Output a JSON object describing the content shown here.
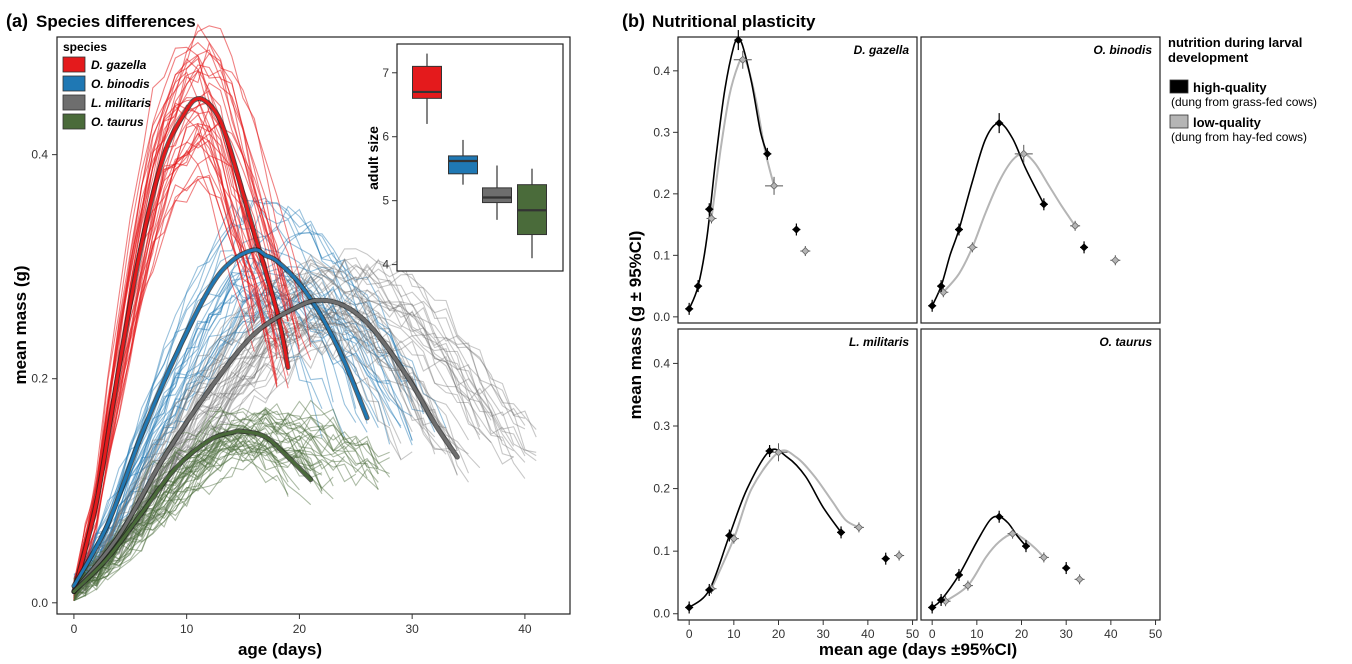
{
  "colors": {
    "dgazella": "#e41a1c",
    "obinodis": "#1f78b4",
    "lmilitaris": "#6e6e6e",
    "otaurus": "#4a6b3a",
    "high": "#000000",
    "low": "#b5b5b5"
  },
  "chart_data": [
    {
      "panel_label": "(a)",
      "title": "Species differences",
      "type": "line",
      "xlabel": "age (days)",
      "ylabel": "mean mass (g)",
      "xlim": [
        -1.5,
        44
      ],
      "ylim": [
        -0.01,
        0.505
      ],
      "xticks": [
        "0",
        "10",
        "20",
        "30",
        "40"
      ],
      "yticks": [
        "0.0",
        "0.2",
        "0.4"
      ],
      "legend": {
        "title": "species",
        "position": "top-left",
        "items": [
          "D. gazella",
          "O. binodis",
          "L. militaris",
          "O. taurus"
        ]
      },
      "series": [
        {
          "name": "D. gazella",
          "color": "#e41a1c",
          "mean_x": [
            0,
            2,
            4,
            6,
            8,
            10,
            11,
            12,
            13,
            14,
            16,
            18,
            19
          ],
          "mean_y": [
            0.01,
            0.09,
            0.21,
            0.32,
            0.4,
            0.44,
            0.45,
            0.445,
            0.43,
            0.4,
            0.33,
            0.26,
            0.21
          ]
        },
        {
          "name": "O. binodis",
          "color": "#1f78b4",
          "mean_x": [
            0,
            3,
            6,
            9,
            12,
            14,
            16,
            17,
            18,
            20,
            22,
            24,
            26
          ],
          "mean_y": [
            0.015,
            0.07,
            0.15,
            0.22,
            0.28,
            0.305,
            0.315,
            0.31,
            0.305,
            0.285,
            0.255,
            0.215,
            0.165
          ]
        },
        {
          "name": "L. militaris",
          "color": "#6e6e6e",
          "mean_x": [
            0,
            4,
            8,
            12,
            16,
            20,
            22,
            24,
            26,
            28,
            30,
            32,
            34
          ],
          "mean_y": [
            0.01,
            0.06,
            0.13,
            0.19,
            0.24,
            0.265,
            0.27,
            0.265,
            0.25,
            0.225,
            0.195,
            0.16,
            0.13
          ]
        },
        {
          "name": "O. taurus",
          "color": "#4a6b3a",
          "mean_x": [
            0,
            3,
            6,
            9,
            12,
            14,
            15,
            17,
            19,
            21
          ],
          "mean_y": [
            0.01,
            0.04,
            0.08,
            0.12,
            0.145,
            0.152,
            0.153,
            0.148,
            0.13,
            0.11
          ]
        }
      ],
      "inset": {
        "type": "box",
        "ylabel": "adult size",
        "ylim": [
          3.9,
          7.45
        ],
        "yticks": [
          "4",
          "5",
          "6",
          "7"
        ],
        "boxes": [
          {
            "name": "D. gazella",
            "color": "#e41a1c",
            "min": 6.2,
            "q1": 6.6,
            "median": 6.7,
            "q3": 7.1,
            "max": 7.3
          },
          {
            "name": "O. binodis",
            "color": "#1f78b4",
            "min": 5.25,
            "q1": 5.42,
            "median": 5.62,
            "q3": 5.7,
            "max": 5.95
          },
          {
            "name": "L. militaris",
            "color": "#6e6e6e",
            "min": 4.7,
            "q1": 4.97,
            "median": 5.05,
            "q3": 5.2,
            "max": 5.55
          },
          {
            "name": "O. taurus",
            "color": "#4a6b3a",
            "min": 4.1,
            "q1": 4.47,
            "median": 4.85,
            "q3": 5.25,
            "max": 5.5
          }
        ]
      }
    },
    {
      "panel_label": "(b)",
      "title": "Nutritional plasticity",
      "type": "scatter",
      "xlabel": "mean age (days ±95%CI)",
      "ylabel": "mean mass (g ± 95%CI)",
      "xlim": [
        -2.5,
        51
      ],
      "ylim": [
        -0.01,
        0.455
      ],
      "xticks": [
        "0",
        "10",
        "20",
        "30",
        "40",
        "50"
      ],
      "yticks": [
        "0.0",
        "0.1",
        "0.2",
        "0.3",
        "0.4"
      ],
      "legend": {
        "title": "nutrition during larval development",
        "position": "right",
        "items": [
          {
            "label": "high-quality",
            "note": "(dung from grass-fed cows)"
          },
          {
            "label": "low-quality",
            "note": "(dung from hay-fed cows)"
          }
        ]
      },
      "facets": [
        {
          "name": "D. gazella",
          "high": [
            [
              0,
              0.013
            ],
            [
              2,
              0.05
            ],
            [
              4.5,
              0.175
            ],
            [
              11,
              0.45
            ],
            [
              17.5,
              0.265
            ],
            [
              24,
              0.142
            ]
          ],
          "low": [
            [
              5,
              0.16
            ],
            [
              12,
              0.418
            ],
            [
              19,
              0.213
            ],
            [
              26,
              0.107
            ]
          ],
          "high_curve": [
            [
              0,
              0.013
            ],
            [
              2,
              0.05
            ],
            [
              4,
              0.13
            ],
            [
              6,
              0.26
            ],
            [
              8,
              0.37
            ],
            [
              10,
              0.44
            ],
            [
              11,
              0.45
            ],
            [
              12,
              0.44
            ],
            [
              14,
              0.38
            ],
            [
              16,
              0.3
            ],
            [
              17.5,
              0.265
            ]
          ],
          "low_curve": [
            [
              5,
              0.16
            ],
            [
              7,
              0.27
            ],
            [
              9,
              0.36
            ],
            [
              11,
              0.41
            ],
            [
              12,
              0.418
            ],
            [
              13,
              0.41
            ],
            [
              15,
              0.35
            ],
            [
              17,
              0.27
            ],
            [
              19,
              0.213
            ]
          ]
        },
        {
          "name": "O. binodis",
          "high": [
            [
              0,
              0.018
            ],
            [
              2,
              0.05
            ],
            [
              6,
              0.142
            ],
            [
              15,
              0.315
            ],
            [
              25,
              0.183
            ],
            [
              34,
              0.113
            ]
          ],
          "low": [
            [
              2.5,
              0.04
            ],
            [
              9,
              0.113
            ],
            [
              20.5,
              0.265
            ],
            [
              32,
              0.148
            ],
            [
              41,
              0.092
            ]
          ],
          "high_curve": [
            [
              0,
              0.018
            ],
            [
              2,
              0.05
            ],
            [
              4,
              0.1
            ],
            [
              6,
              0.142
            ],
            [
              9,
              0.22
            ],
            [
              12,
              0.29
            ],
            [
              15,
              0.315
            ],
            [
              18,
              0.29
            ],
            [
              21,
              0.24
            ],
            [
              25,
              0.183
            ]
          ],
          "low_curve": [
            [
              2.5,
              0.04
            ],
            [
              6,
              0.07
            ],
            [
              9,
              0.113
            ],
            [
              12,
              0.17
            ],
            [
              15,
              0.22
            ],
            [
              18,
              0.255
            ],
            [
              20.5,
              0.265
            ],
            [
              23,
              0.25
            ],
            [
              26,
              0.215
            ],
            [
              29,
              0.18
            ],
            [
              32,
              0.148
            ]
          ]
        },
        {
          "name": "L. militaris",
          "high": [
            [
              0,
              0.01
            ],
            [
              4.5,
              0.038
            ],
            [
              9,
              0.125
            ],
            [
              18,
              0.26
            ],
            [
              34,
              0.13
            ],
            [
              44,
              0.088
            ]
          ],
          "low": [
            [
              5,
              0.04
            ],
            [
              10,
              0.12
            ],
            [
              20,
              0.258
            ],
            [
              38,
              0.138
            ],
            [
              47,
              0.093
            ]
          ],
          "high_curve": [
            [
              0,
              0.01
            ],
            [
              4.5,
              0.038
            ],
            [
              9,
              0.125
            ],
            [
              13,
              0.2
            ],
            [
              18,
              0.26
            ],
            [
              22,
              0.25
            ],
            [
              26,
              0.22
            ],
            [
              30,
              0.17
            ],
            [
              34,
              0.13
            ]
          ],
          "low_curve": [
            [
              5,
              0.04
            ],
            [
              10,
              0.12
            ],
            [
              14,
              0.2
            ],
            [
              20,
              0.258
            ],
            [
              24,
              0.25
            ],
            [
              28,
              0.22
            ],
            [
              32,
              0.18
            ],
            [
              35,
              0.15
            ],
            [
              38,
              0.138
            ]
          ]
        },
        {
          "name": "O. taurus",
          "high": [
            [
              0,
              0.01
            ],
            [
              2,
              0.022
            ],
            [
              6,
              0.062
            ],
            [
              15,
              0.155
            ],
            [
              21,
              0.108
            ],
            [
              30,
              0.073
            ]
          ],
          "low": [
            [
              3,
              0.02
            ],
            [
              8,
              0.045
            ],
            [
              18,
              0.128
            ],
            [
              25,
              0.09
            ],
            [
              33,
              0.055
            ]
          ],
          "high_curve": [
            [
              0,
              0.01
            ],
            [
              2,
              0.022
            ],
            [
              6,
              0.062
            ],
            [
              10,
              0.115
            ],
            [
              13,
              0.15
            ],
            [
              15,
              0.155
            ],
            [
              17,
              0.145
            ],
            [
              19,
              0.125
            ],
            [
              21,
              0.108
            ]
          ],
          "low_curve": [
            [
              3,
              0.02
            ],
            [
              8,
              0.045
            ],
            [
              12,
              0.09
            ],
            [
              15,
              0.115
            ],
            [
              18,
              0.128
            ],
            [
              20,
              0.122
            ],
            [
              23,
              0.105
            ],
            [
              25,
              0.09
            ]
          ]
        }
      ]
    }
  ]
}
